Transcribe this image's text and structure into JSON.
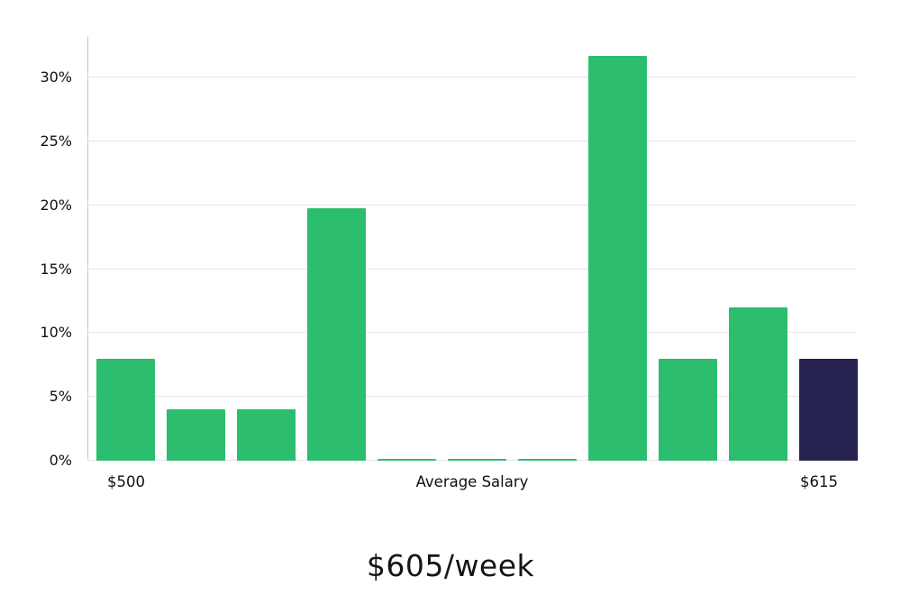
{
  "chart_data": {
    "type": "bar",
    "title": "$605/week",
    "xlabel": "Average Salary",
    "ylabel": "",
    "x_axis_labels": {
      "left": "$500",
      "center": "Average Salary",
      "right": "$615"
    },
    "y_ticks": [
      {
        "label": "0%",
        "value": 0
      },
      {
        "label": "5%",
        "value": 5
      },
      {
        "label": "10%",
        "value": 10
      },
      {
        "label": "15%",
        "value": 15
      },
      {
        "label": "20%",
        "value": 20
      },
      {
        "label": "25%",
        "value": 25
      },
      {
        "label": "30%",
        "value": 30
      }
    ],
    "ylim": [
      0,
      33.25
    ],
    "grid": true,
    "legend": "none",
    "values": [
      8.0,
      4.0,
      4.0,
      19.8,
      0.15,
      0.15,
      0.15,
      31.7,
      8.0,
      12.0,
      8.0
    ],
    "highlight_index": 10,
    "colors": {
      "bar": "#2dbd6e",
      "highlight_bar": "#262250",
      "gridline": "#e4e4e4",
      "axis_spine": "#c9c9c9",
      "text": "#111111"
    }
  }
}
